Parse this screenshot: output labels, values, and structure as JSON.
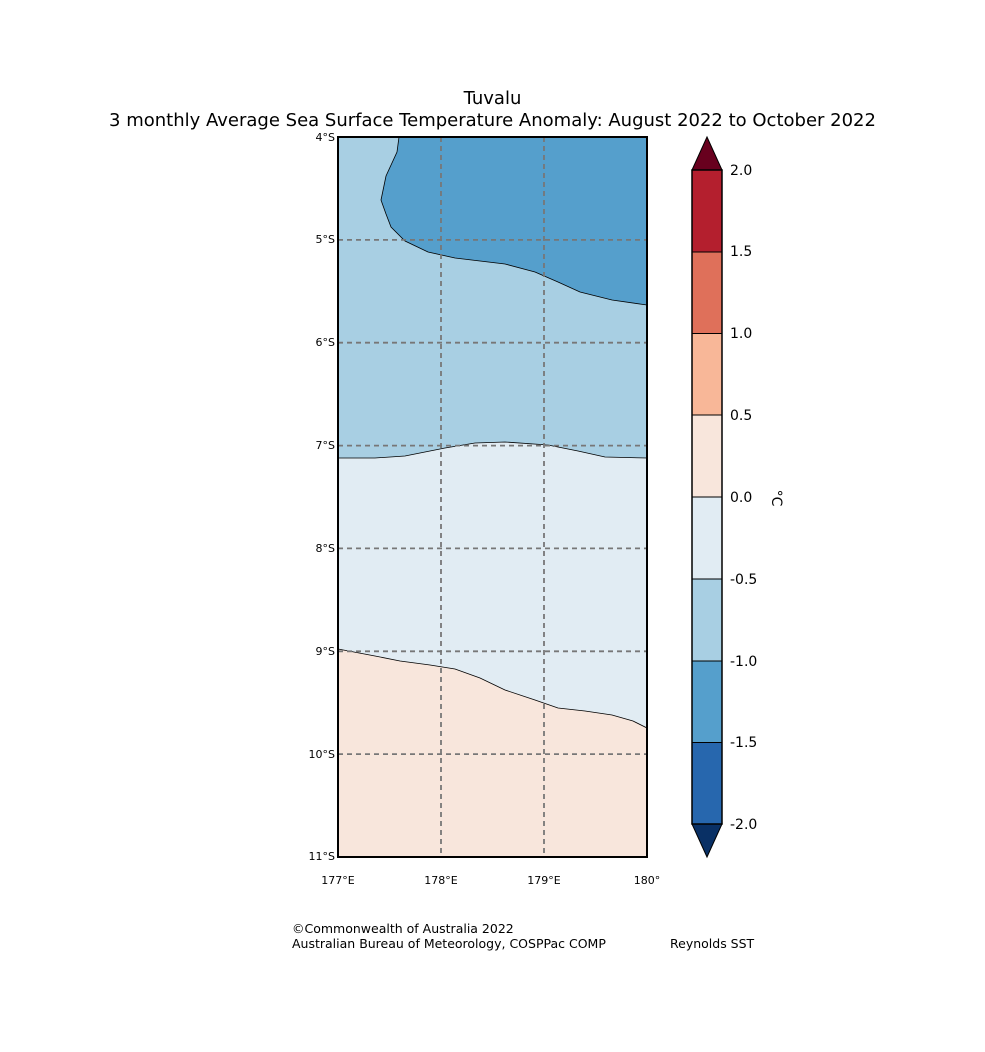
{
  "title": {
    "line1": "Tuvalu",
    "line2": "3 monthly Average Sea Surface Temperature Anomaly: August 2022 to October 2022"
  },
  "map": {
    "lat_labels": [
      "4°S",
      "5°S",
      "6°S",
      "7°S",
      "8°S",
      "9°S",
      "10°S",
      "11°S"
    ],
    "lon_labels": [
      "177°E",
      "178°E",
      "179°E",
      "180°"
    ],
    "lat_range": [
      -11,
      -4
    ],
    "lon_range": [
      177,
      180
    ],
    "gridlines": "dashed",
    "regions": [
      {
        "name": "anomaly -1.5 to -1.0",
        "color": "#559fcc"
      },
      {
        "name": "anomaly -1.0 to -0.5",
        "color": "#a8cfe3"
      },
      {
        "name": "anomaly -0.5 to 0.0",
        "color": "#e1ecf3"
      },
      {
        "name": "anomaly 0.0 to 0.5",
        "color": "#f8e6dc"
      }
    ]
  },
  "colorbar": {
    "unit": "°C",
    "ticks": [
      "2.0",
      "1.5",
      "1.0",
      "0.5",
      "0.0",
      "-0.5",
      "-1.0",
      "-1.5",
      "-2.0"
    ],
    "colors_top_to_bottom": [
      "#b41f2e",
      "#df705a",
      "#f8b798",
      "#f8e6dc",
      "#e1ecf3",
      "#a8cfe3",
      "#559fcc",
      "#2767ae"
    ],
    "over_color": "#68001e",
    "under_color": "#093065"
  },
  "footer": {
    "copyright": "©Commonwealth of Australia 2022",
    "agency": "Australian Bureau of Meteorology, COSPPac COMP",
    "source": "Reynolds SST"
  }
}
